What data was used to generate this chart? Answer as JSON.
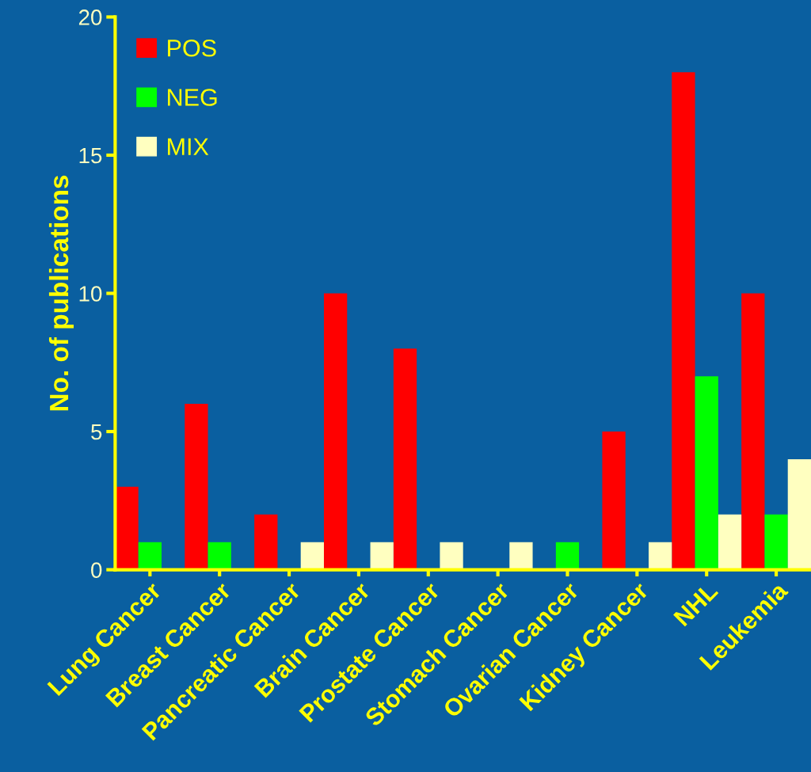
{
  "chart_data": {
    "type": "bar",
    "ylabel": "No. of publications",
    "categories": [
      "Lung Cancer",
      "Breast Cancer",
      "Pancreatic Cancer",
      "Brain Cancer",
      "Prostate Cancer",
      "Stomach Cancer",
      "Ovarian Cancer",
      "Kidney Cancer",
      "NHL",
      "Leukemia"
    ],
    "series": [
      {
        "name": "POS",
        "color": "#ff0000",
        "values": [
          3,
          6,
          2,
          10,
          8,
          0,
          0,
          5,
          18,
          10
        ]
      },
      {
        "name": "NEG",
        "color": "#00ff00",
        "values": [
          1,
          1,
          0,
          0,
          0,
          0,
          1,
          0,
          7,
          2
        ]
      },
      {
        "name": "MIX",
        "color": "#ffffc0",
        "values": [
          0,
          0,
          1,
          1,
          1,
          1,
          0,
          1,
          2,
          4
        ]
      }
    ],
    "ylim": [
      0,
      20
    ],
    "yticks": [
      0,
      5,
      10,
      15,
      20
    ],
    "grid": false,
    "legend": "top left"
  }
}
